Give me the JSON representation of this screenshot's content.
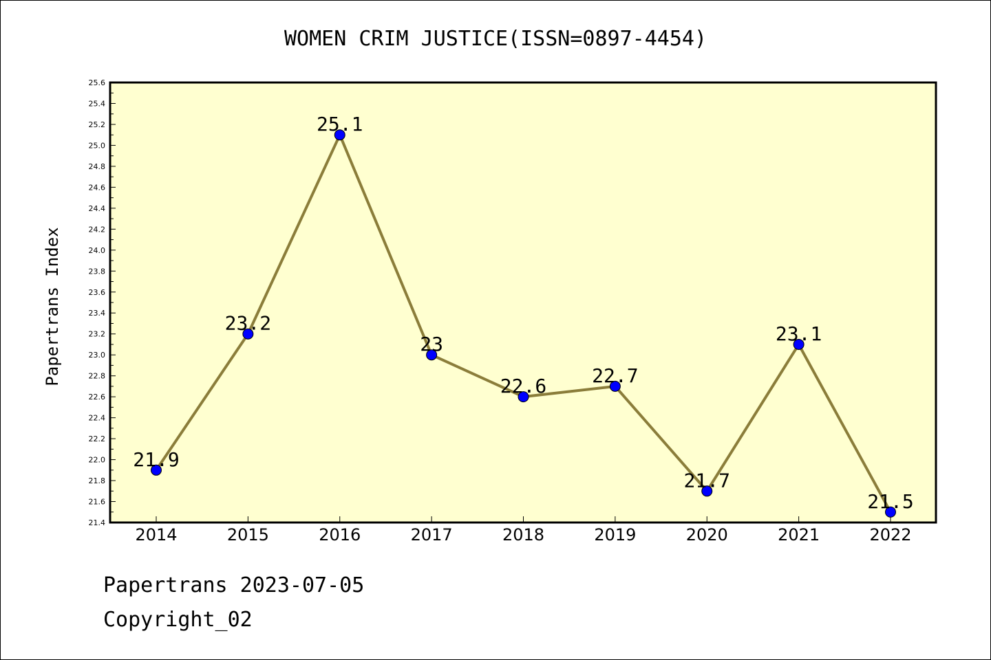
{
  "chart_data": {
    "type": "line",
    "title": "WOMEN CRIM JUSTICE(ISSN=0897-4454)",
    "xlabel": "",
    "ylabel": "Papertrans Index",
    "categories": [
      "2014",
      "2015",
      "2016",
      "2017",
      "2018",
      "2019",
      "2020",
      "2021",
      "2022"
    ],
    "series": [
      {
        "values": [
          21.9,
          23.2,
          25.1,
          23.0,
          22.6,
          22.7,
          21.7,
          23.1,
          21.5
        ]
      }
    ],
    "data_labels": [
      "21.9",
      "23.2",
      "25.1",
      "23",
      "22.6",
      "22.7",
      "21.7",
      "23.1",
      "21.5"
    ],
    "ylim": [
      21.4,
      25.6
    ],
    "yticks": [
      "21.4",
      "21.6",
      "21.8",
      "22.0",
      "22.2",
      "22.4",
      "22.6",
      "22.8",
      "23.0",
      "23.2",
      "23.4",
      "23.6",
      "23.8",
      "24.0",
      "24.2",
      "24.4",
      "24.6",
      "24.8",
      "25.0",
      "25.2",
      "25.4",
      "25.6"
    ],
    "grid": false,
    "colors": {
      "plot_background": "#ffffd0",
      "line": "#8b7d3a",
      "marker": "#0000ff"
    }
  },
  "footer": {
    "line1": "Papertrans 2023-07-05",
    "line2": "Copyright_02"
  }
}
